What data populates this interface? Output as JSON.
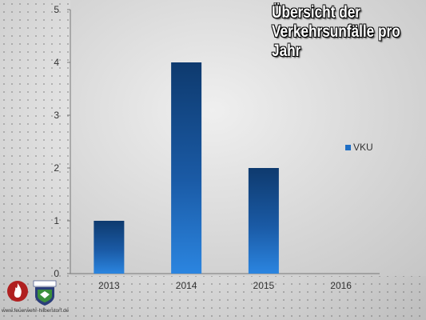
{
  "chart_data": {
    "type": "bar",
    "title": "Übersicht der Verkehrsunfälle pro Jahr",
    "title_lines": [
      "Übersicht der",
      "Verkehrsunfälle pro",
      "Jahr"
    ],
    "categories": [
      "2013",
      "2014",
      "2015",
      "2016"
    ],
    "series": [
      {
        "name": "VKU",
        "values": [
          1,
          4,
          2,
          0
        ],
        "color": "#1f6fc5"
      }
    ],
    "ylim": [
      0,
      5
    ],
    "yticks": [
      "0",
      "1",
      "2",
      "3",
      "4",
      "5"
    ],
    "grid": false,
    "legend": "right"
  },
  "footer": {
    "website": "www.feuerwehr-hilberstorf.de",
    "logo_icons": [
      "fire-department-flame-logo",
      "crest-logo"
    ]
  }
}
